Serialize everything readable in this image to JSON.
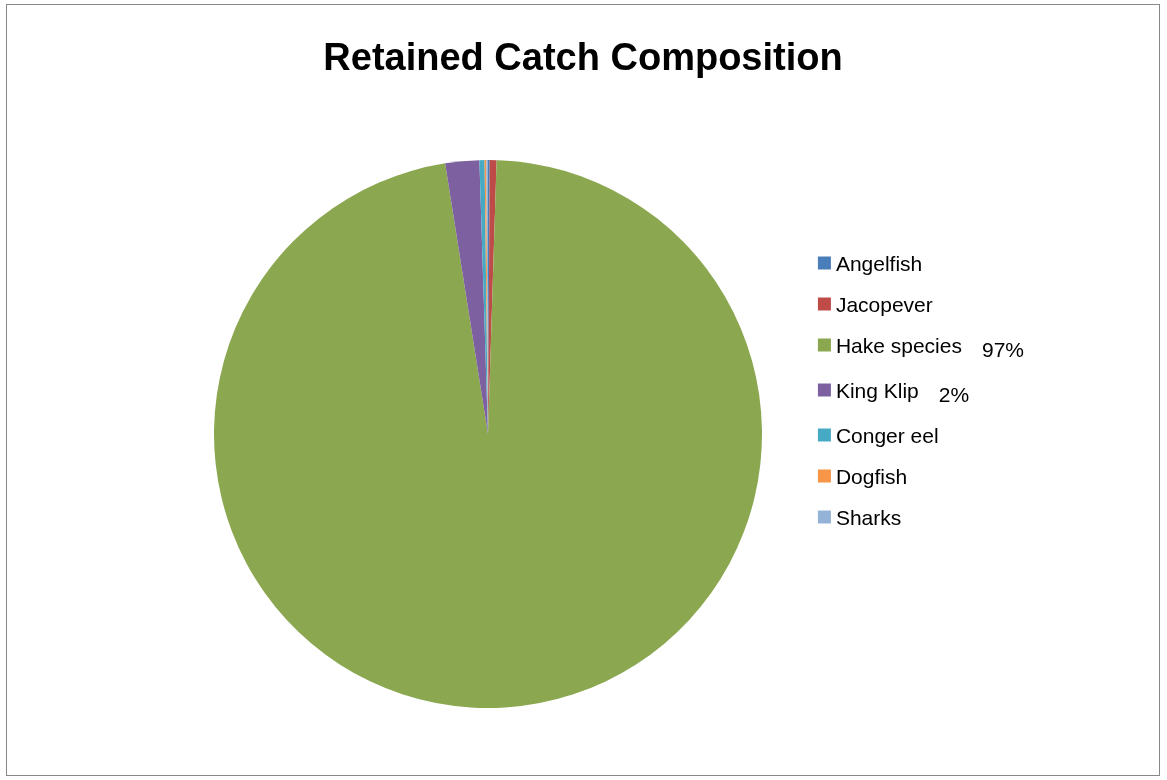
{
  "chart_data": {
    "type": "pie",
    "title": "Retained Catch Composition",
    "categories": [
      "Angelfish",
      "Jacopever",
      "Hake species",
      "King Klip",
      "Conger eel",
      "Dogfish",
      "Sharks"
    ],
    "values": [
      0.1,
      0.4,
      97,
      2,
      0.3,
      0.1,
      0.1
    ],
    "colors": [
      "#4a7ebb",
      "#be4b48",
      "#8ba74f",
      "#7d60a0",
      "#46aac5",
      "#f79646",
      "#94b3d7"
    ],
    "value_labels": [
      null,
      null,
      "97%",
      "2%",
      null,
      null,
      null
    ],
    "legend": "right"
  }
}
